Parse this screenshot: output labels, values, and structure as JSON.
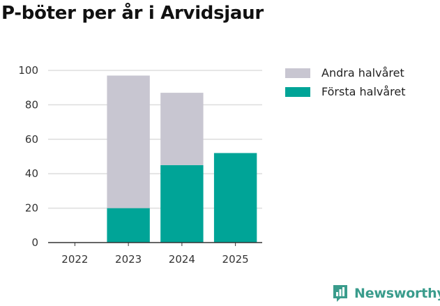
{
  "chart_data": {
    "type": "bar",
    "stacked": true,
    "title": "P-böter per år i Arvidsjaur",
    "xlabel": "",
    "ylabel": "",
    "ylim": [
      0,
      100
    ],
    "yticks": [
      0,
      20,
      40,
      60,
      80,
      100
    ],
    "categories": [
      "2022",
      "2023",
      "2024",
      "2025"
    ],
    "series": [
      {
        "name": "Första halvåret",
        "color": "#00a497",
        "values": [
          0,
          20,
          45,
          52
        ]
      },
      {
        "name": "Andra halvåret",
        "color": "#c8c6d1",
        "values": [
          0,
          77,
          42,
          0
        ]
      }
    ],
    "legend": [
      {
        "name": "Andra halvåret",
        "color": "#c8c6d1"
      },
      {
        "name": "Första halvåret",
        "color": "#00a497"
      }
    ],
    "legend_position": "right",
    "grid": true
  },
  "brand": {
    "name": "Newsworthy",
    "color": "#3a9c8c"
  }
}
